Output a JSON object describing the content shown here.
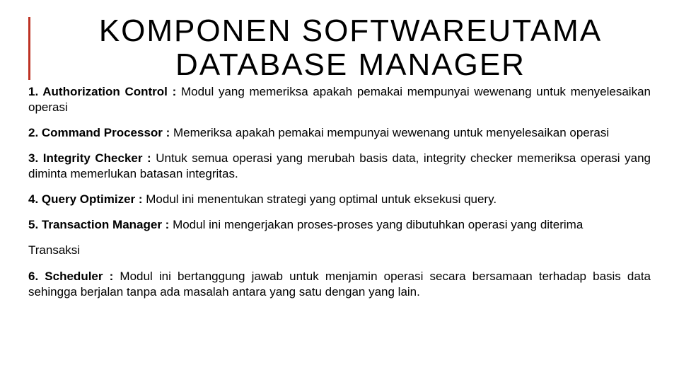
{
  "title_line1": "KOMPONEN SOFTWAREUTAMA",
  "title_line2": "DATABASE MANAGER",
  "items": [
    {
      "lead": "1. Authorization Control : ",
      "body": "Modul yang memeriksa apakah pemakai mempunyai wewenang untuk  menyelesaikan operasi"
    },
    {
      "lead": "2. Command Processor : ",
      "body": "Memeriksa apakah pemakai mempunyai wewenang untuk menyelesaikan operasi"
    },
    {
      "lead": "3. Integrity Checker : ",
      "body": "Untuk semua operasi yang merubah basis data, integrity checker memeriksa  operasi yang diminta memerlukan batasan integritas."
    },
    {
      "lead": "4. Query Optimizer : ",
      "body": "Modul ini menentukan strategi yang optimal untuk eksekusi query."
    },
    {
      "lead": "5. Transaction Manager : ",
      "body": "Modul ini mengerjakan proses-proses yang dibutuhkan operasi yang diterima"
    }
  ],
  "extra": "Transaksi",
  "item6": {
    "lead": "6. Scheduler : ",
    "body": "Modul ini bertanggung jawab untuk menjamin operasi secara bersamaan terhadap basis data sehingga berjalan tanpa ada masalah antara yang satu dengan yang lain."
  },
  "colors": {
    "accent": "#bd3224",
    "text": "#000000",
    "bg": "#ffffff"
  }
}
